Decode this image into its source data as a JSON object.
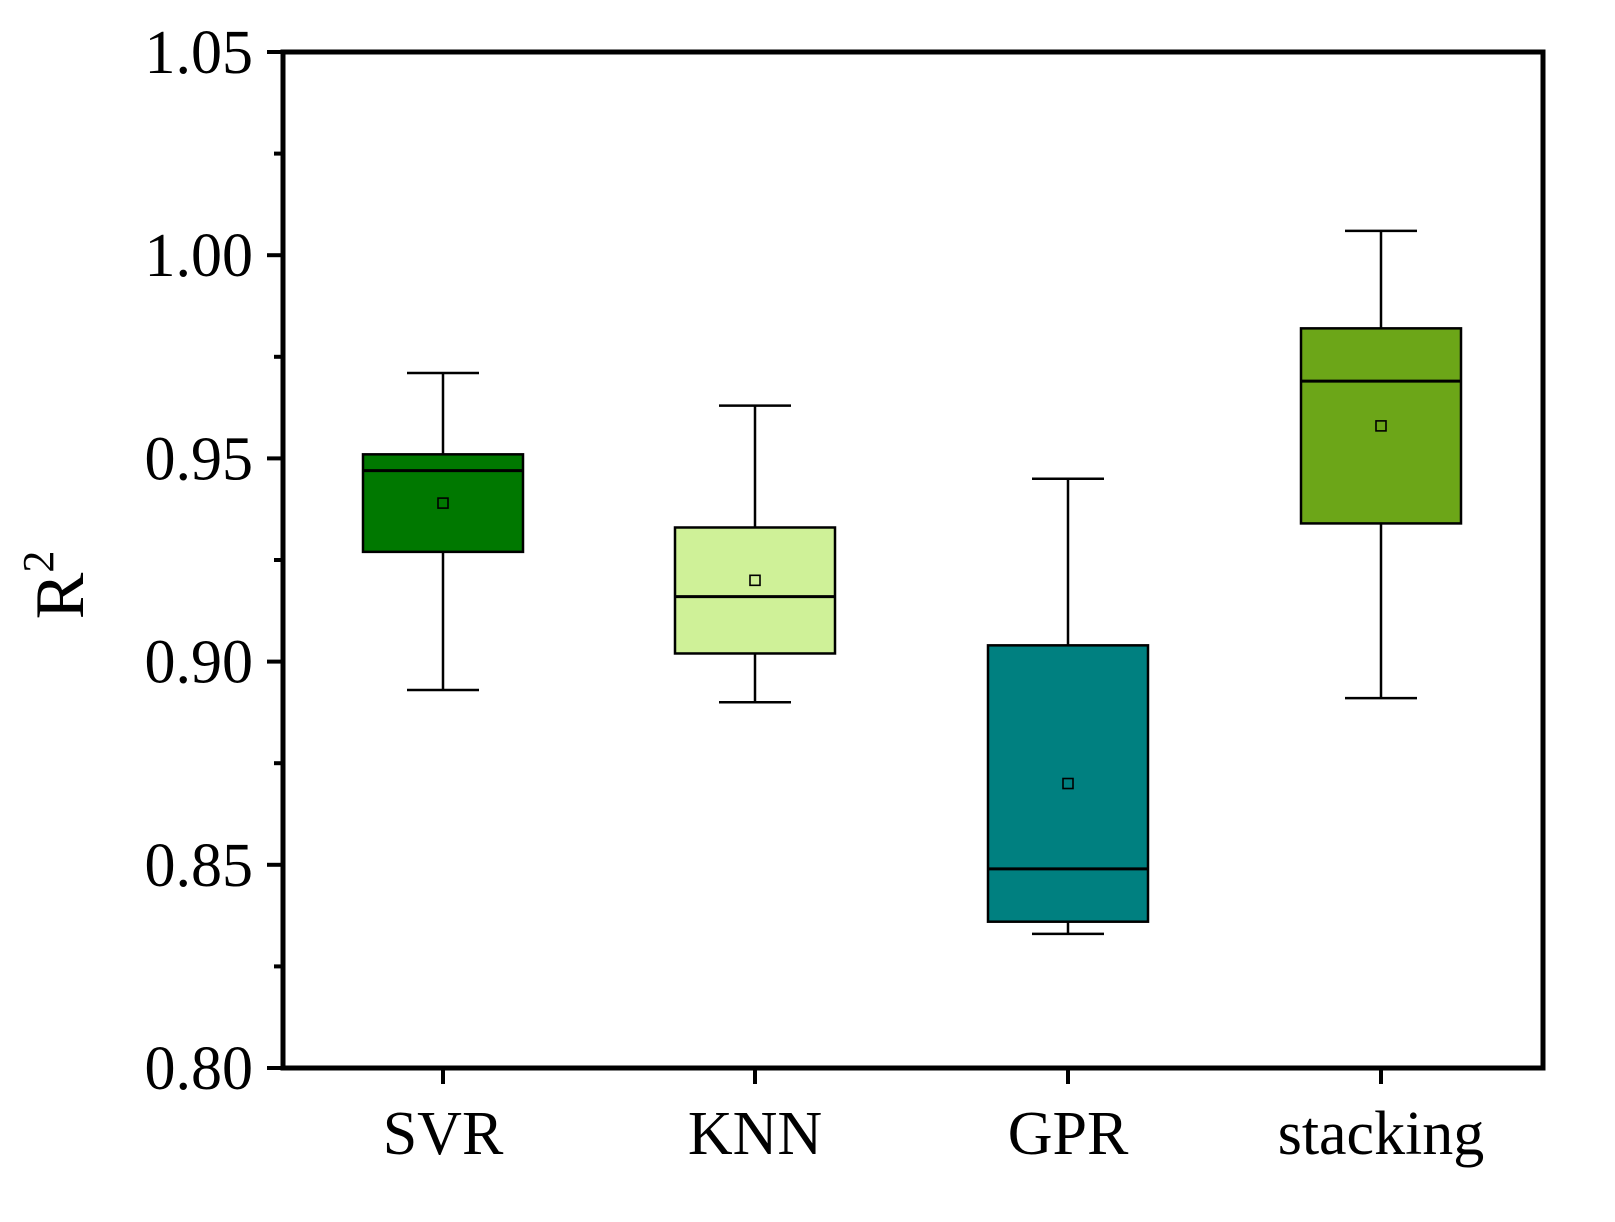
{
  "chart_data": {
    "type": "boxplot",
    "title": "",
    "xlabel": "",
    "ylabel": "R",
    "ylabel_superscript": "2",
    "ylim": [
      0.8,
      1.05
    ],
    "y_ticks": [
      "0.80",
      "0.85",
      "0.90",
      "0.95",
      "1.00",
      "1.05"
    ],
    "y_tick_values": [
      0.8,
      0.85,
      0.9,
      0.95,
      1.0,
      1.05
    ],
    "y_minor_tick_values": [
      0.825,
      0.875,
      0.925,
      0.975,
      1.025
    ],
    "categories": [
      "SVR",
      "KNN",
      "GPR",
      "stacking"
    ],
    "series": [
      {
        "name": "SVR",
        "whisker_low": 0.893,
        "q1": 0.927,
        "median": 0.947,
        "q3": 0.951,
        "whisker_high": 0.971,
        "mean": 0.939,
        "color": "#007800"
      },
      {
        "name": "KNN",
        "whisker_low": 0.89,
        "q1": 0.902,
        "median": 0.916,
        "q3": 0.933,
        "whisker_high": 0.963,
        "mean": 0.92,
        "color": "#cff198"
      },
      {
        "name": "GPR",
        "whisker_low": 0.833,
        "q1": 0.836,
        "median": 0.849,
        "q3": 0.904,
        "whisker_high": 0.945,
        "mean": 0.87,
        "color": "#008080"
      },
      {
        "name": "stacking",
        "whisker_low": 0.891,
        "q1": 0.934,
        "median": 0.969,
        "q3": 0.982,
        "whisker_high": 1.006,
        "mean": 0.958,
        "color": "#6ca618"
      }
    ],
    "grid": false,
    "legend": "none"
  }
}
